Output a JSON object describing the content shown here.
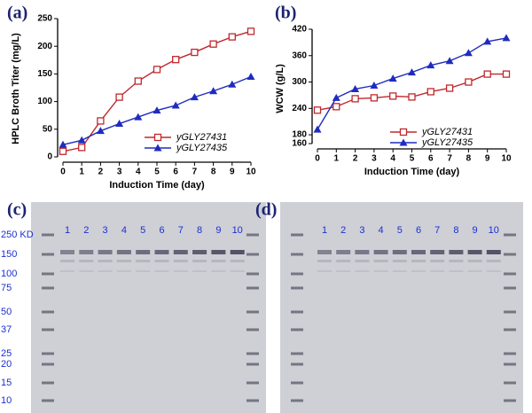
{
  "chart_data": [
    {
      "type": "line",
      "panel_label": "(a)",
      "x_label": "Induction Time  (day)",
      "y_label": "HPLC Broth Titer  (mg/L)",
      "x": [
        0,
        1,
        2,
        3,
        4,
        5,
        6,
        7,
        8,
        9,
        10
      ],
      "xlim": [
        0,
        10
      ],
      "xticks": [
        0,
        1,
        2,
        3,
        4,
        5,
        6,
        7,
        8,
        9,
        10
      ],
      "ylim": [
        0,
        250
      ],
      "yticks": [
        0,
        50,
        100,
        150,
        200,
        250
      ],
      "series": [
        {
          "name": "yGLY27431",
          "color": "#c0282d",
          "marker": "square-open",
          "values": [
            10,
            17,
            65,
            108,
            137,
            158,
            176,
            189,
            204,
            217,
            227
          ]
        },
        {
          "name": "yGLY27435",
          "color": "#1f2bc0",
          "marker": "triangle",
          "values": [
            22,
            30,
            47,
            60,
            72,
            84,
            93,
            108,
            119,
            131,
            145
          ]
        }
      ]
    },
    {
      "type": "line",
      "panel_label": "(b)",
      "x_label": "Induction Time  (day)",
      "y_label": "WCW (g/L)",
      "x": [
        0,
        1,
        2,
        3,
        4,
        5,
        6,
        7,
        8,
        9,
        10
      ],
      "xlim": [
        0,
        10
      ],
      "xticks": [
        0,
        1,
        2,
        3,
        4,
        5,
        6,
        7,
        8,
        9,
        10
      ],
      "ylim": [
        160,
        420
      ],
      "yticks": [
        160,
        180,
        240,
        300,
        360,
        420
      ],
      "series": [
        {
          "name": "yGLY27431",
          "color": "#c0282d",
          "marker": "square-open",
          "values": [
            236,
            244,
            262,
            264,
            268,
            266,
            278,
            286,
            300,
            318,
            318
          ]
        },
        {
          "name": "yGLY27435",
          "color": "#1f2bc0",
          "marker": "triangle",
          "values": [
            192,
            264,
            284,
            292,
            308,
            322,
            338,
            348,
            366,
            392,
            400
          ]
        }
      ]
    }
  ],
  "gels": [
    {
      "panel_label": "(c)",
      "lanes": [
        "1",
        "2",
        "3",
        "4",
        "5",
        "6",
        "7",
        "8",
        "9",
        "10"
      ],
      "markers": [
        "250 KD",
        "150",
        "100",
        "75",
        "50",
        "37",
        "25",
        "20",
        "15",
        "10"
      ]
    },
    {
      "panel_label": "(d)",
      "lanes": [
        "1",
        "2",
        "3",
        "4",
        "5",
        "6",
        "7",
        "8",
        "9",
        "10"
      ]
    }
  ]
}
